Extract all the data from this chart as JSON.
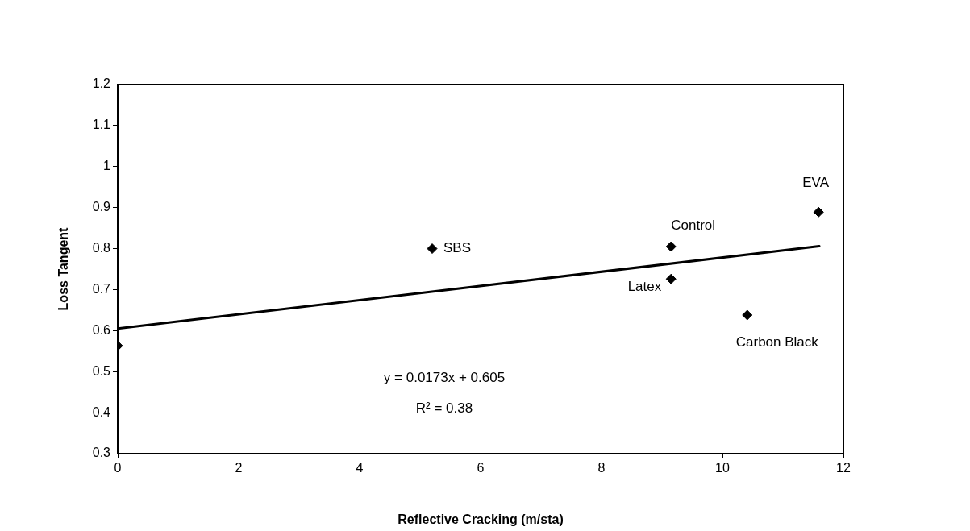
{
  "chart_data": {
    "type": "scatter",
    "xlabel": "Reflective Cracking (m/sta)",
    "ylabel": "Loss Tangent",
    "xlim": [
      0,
      12
    ],
    "xticks": [
      0,
      2,
      4,
      6,
      8,
      10,
      12
    ],
    "ylim": [
      0.3,
      1.2
    ],
    "yticks": [
      0.3,
      0.4,
      0.5,
      0.6,
      0.7,
      0.8,
      0.9,
      1,
      1.1,
      1.2
    ],
    "grid": false,
    "legend": false,
    "line_style": "solid",
    "series": [
      {
        "marker": "diamond",
        "color": "#000000",
        "x": [
          0,
          5.2,
          9.15,
          9.15,
          10.41,
          11.59
        ],
        "values": [
          0.563,
          0.8,
          0.805,
          0.726,
          0.638,
          0.889
        ]
      },
      {
        "type": "line",
        "marker": "none",
        "color": "#000000",
        "x": [
          0,
          11.6
        ],
        "values": [
          0.605,
          0.806
        ]
      }
    ],
    "annotations": [
      {
        "text": "SBS",
        "x": 5.2,
        "y": 0.8
      },
      {
        "text": "Control",
        "x": 9.15,
        "y": 0.805
      },
      {
        "text": "Latex",
        "x": 9.15,
        "y": 0.726
      },
      {
        "text": "Carbon Black",
        "x": 10.41,
        "y": 0.638
      },
      {
        "text": "EVA",
        "x": 11.59,
        "y": 0.889
      },
      "y = 0.0173x + 0.605",
      "R² = 0.38"
    ]
  }
}
